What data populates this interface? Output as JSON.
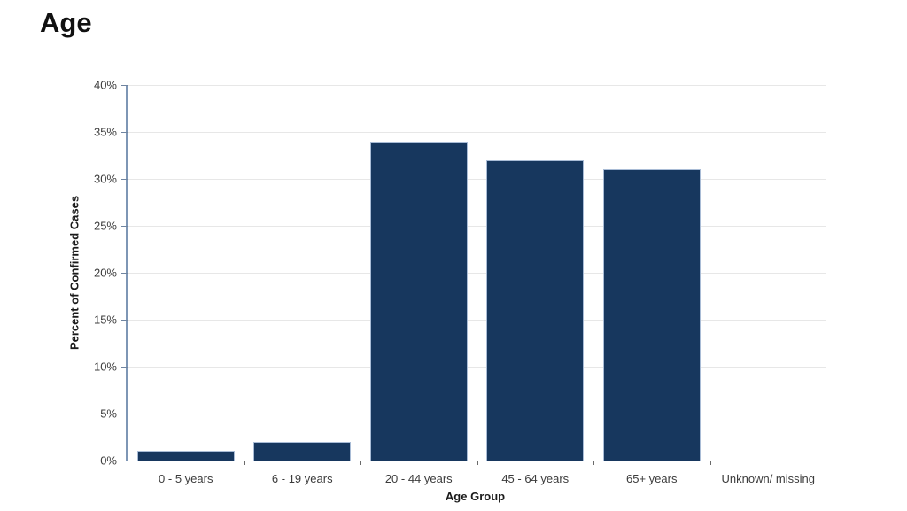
{
  "title": "Age",
  "chart_data": {
    "type": "bar",
    "title": "Age",
    "categories": [
      "0 - 5 years",
      "6 - 19 years",
      "20 - 44 years",
      "45 - 64 years",
      "65+ years",
      "Unknown/ missing"
    ],
    "values": [
      1,
      2,
      34,
      32,
      31,
      0
    ],
    "xlabel": "Age Group",
    "ylabel": "Percent of Confirmed Cases",
    "ylim": [
      0,
      40
    ],
    "ytick_step": 5,
    "ytick_labels": [
      "0%",
      "5%",
      "10%",
      "15%",
      "20%",
      "25%",
      "30%",
      "35%",
      "40%"
    ],
    "grid": true,
    "legend": "none",
    "bar_color": "#17375E",
    "bar_border_color": "#A9BCD6",
    "gridline_color": "#E7E7E7",
    "y_axis_color": "#7E96B5",
    "x_axis_color": "#9B9B9B"
  }
}
